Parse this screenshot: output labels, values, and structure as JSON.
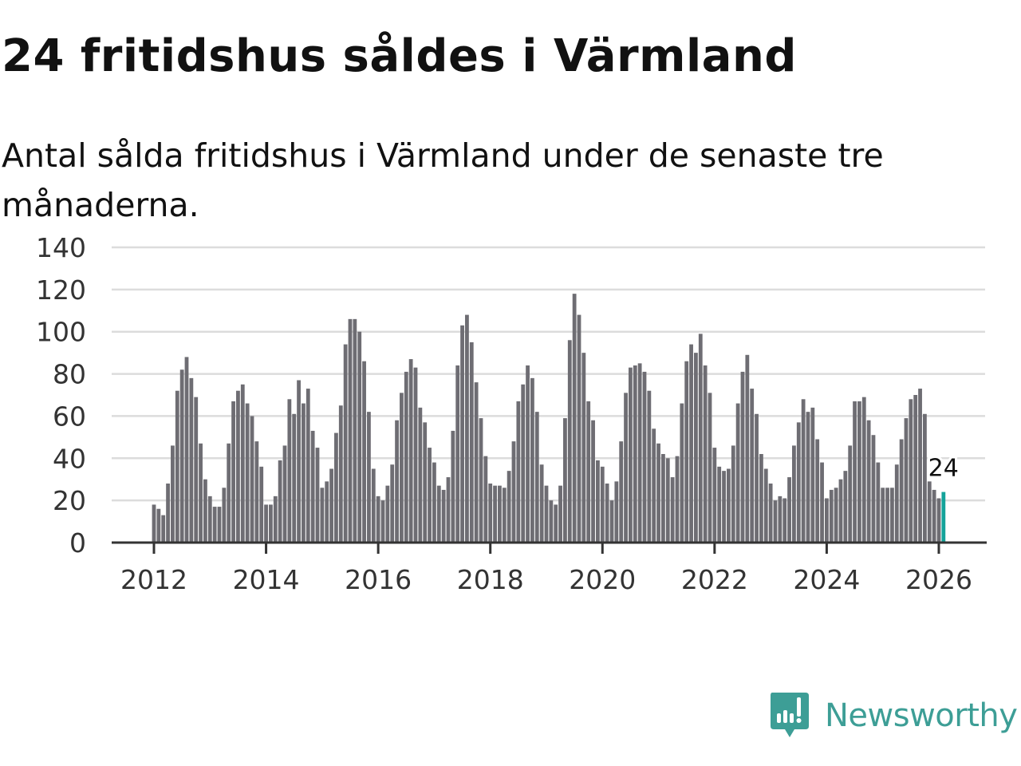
{
  "header": {
    "title": "24 fritidshus såldes i Värmland",
    "subtitle": "Antal sålda fritidshus i Värmland under de senaste tre månaderna."
  },
  "brand": {
    "name": "Newsworthy",
    "color": "#3d9e96"
  },
  "chart_data": {
    "type": "bar",
    "title": "24 fritidshus såldes i Värmland",
    "subtitle": "Antal sålda fritidshus i Värmland under de senaste tre månaderna.",
    "xlabel": "",
    "ylabel": "",
    "start_month": "2012-01",
    "interval": "month",
    "values": [
      18,
      16,
      13,
      28,
      46,
      72,
      82,
      88,
      78,
      69,
      47,
      30,
      22,
      17,
      17,
      26,
      47,
      67,
      72,
      75,
      66,
      60,
      48,
      36,
      18,
      18,
      22,
      39,
      46,
      68,
      61,
      77,
      66,
      73,
      53,
      45,
      26,
      29,
      35,
      52,
      65,
      94,
      106,
      106,
      100,
      86,
      62,
      35,
      22,
      20,
      27,
      37,
      58,
      71,
      81,
      87,
      83,
      64,
      57,
      45,
      38,
      27,
      25,
      31,
      53,
      84,
      103,
      108,
      95,
      76,
      59,
      41,
      28,
      27,
      27,
      26,
      34,
      48,
      67,
      75,
      84,
      78,
      62,
      37,
      27,
      20,
      18,
      27,
      59,
      96,
      118,
      108,
      90,
      67,
      58,
      39,
      36,
      28,
      20,
      29,
      48,
      71,
      83,
      84,
      85,
      81,
      72,
      54,
      47,
      42,
      40,
      31,
      41,
      66,
      86,
      94,
      90,
      99,
      84,
      71,
      45,
      36,
      34,
      35,
      46,
      66,
      81,
      89,
      73,
      61,
      42,
      35,
      28,
      20,
      22,
      21,
      31,
      46,
      57,
      68,
      62,
      64,
      49,
      38,
      21,
      25,
      26,
      30,
      34,
      46,
      67,
      67,
      69,
      58,
      51,
      38,
      26,
      26,
      26,
      37,
      49,
      59,
      68,
      70,
      73,
      61,
      29,
      25,
      21,
      24
    ],
    "highlight_last": true,
    "highlight_label": "24",
    "bar_color": "#6e6d73",
    "highlight_color": "#14a39a",
    "ylim": [
      0,
      140
    ],
    "yticks": [
      "0",
      "20",
      "40",
      "60",
      "80",
      "100",
      "120",
      "140"
    ],
    "xticks": [
      "2012",
      "2014",
      "2016",
      "2018",
      "2020",
      "2022",
      "2024",
      "2026"
    ],
    "grid": true,
    "legend": "none"
  }
}
